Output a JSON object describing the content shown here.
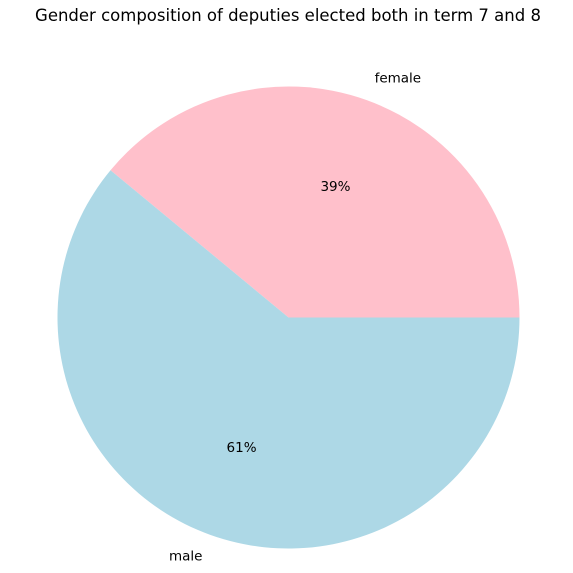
{
  "chart_data": {
    "type": "pie",
    "title": "Gender composition of deputies elected both in term 7 and 8",
    "slices": [
      {
        "label": "female",
        "value": 39,
        "pct_label": "39%",
        "color": "#ffc0cb"
      },
      {
        "label": "male",
        "value": 61,
        "pct_label": "61%",
        "color": "#add8e6"
      }
    ],
    "start_angle_deg": 0,
    "direction": "counterclockwise"
  }
}
